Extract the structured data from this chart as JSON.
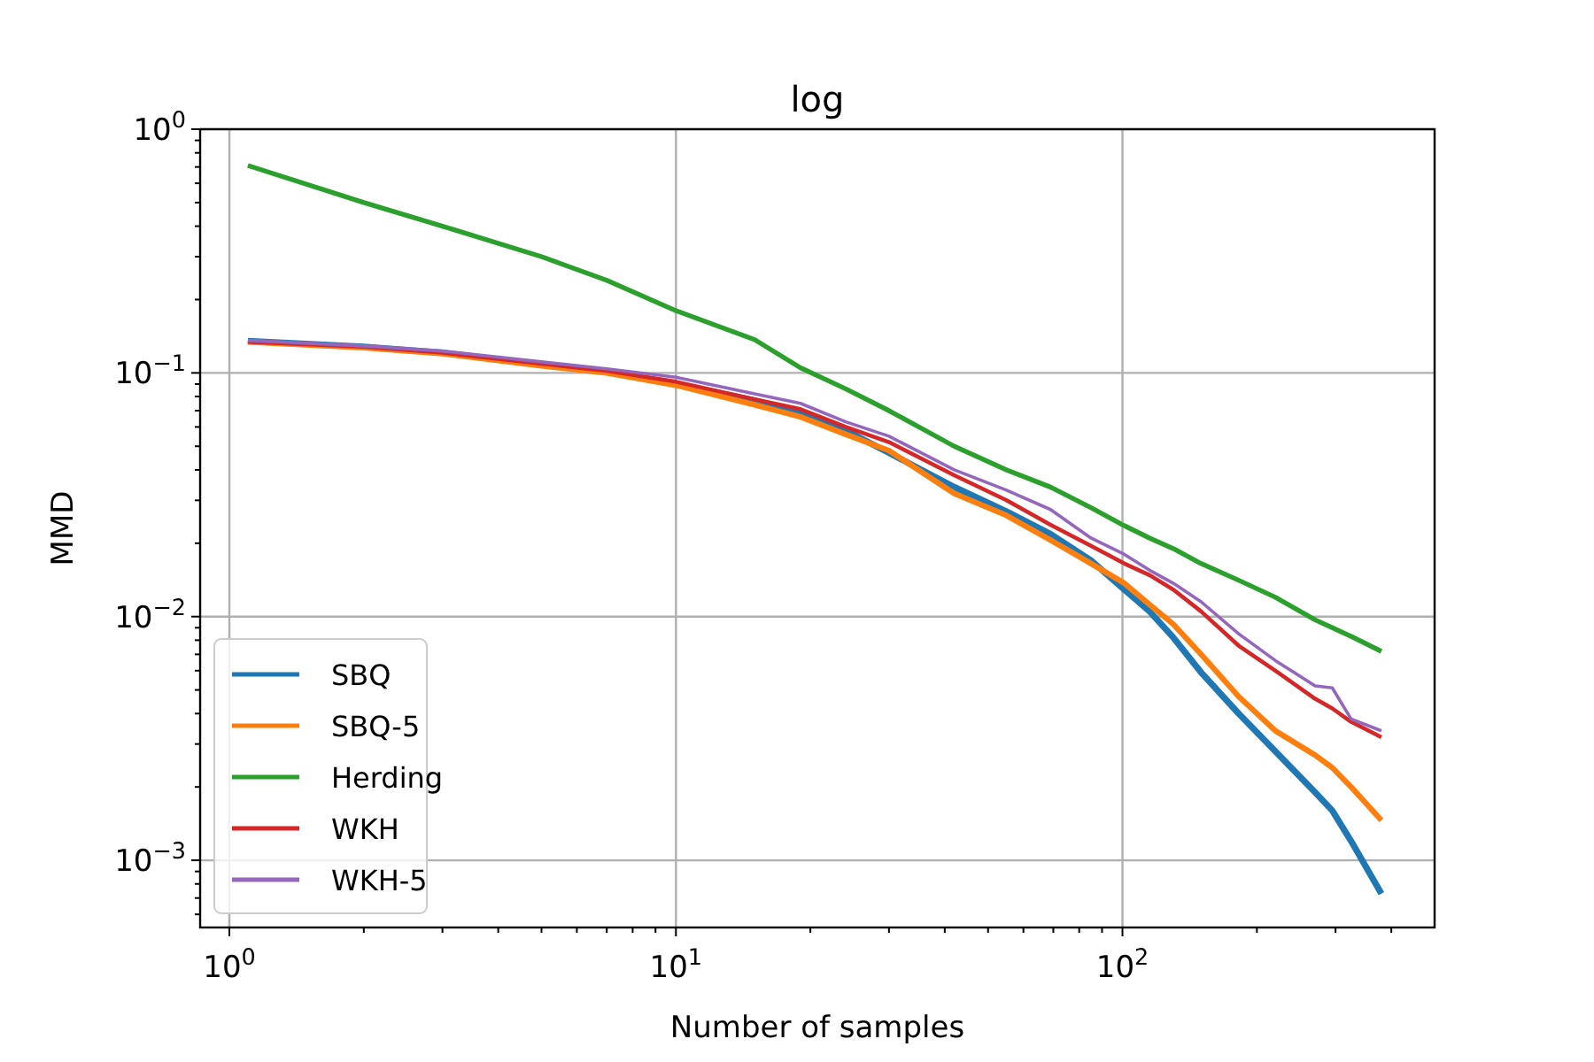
{
  "chart_data": {
    "type": "line",
    "title": "log",
    "xlabel": "Number of samples",
    "ylabel": "MMD",
    "log": "xy",
    "grid": true,
    "legend": "bottom left",
    "line_style": "solid",
    "marker": "none",
    "x": [
      1.1,
      2,
      3,
      5,
      7,
      10,
      15,
      19,
      24,
      30,
      42,
      55,
      69,
      85,
      101,
      115,
      130,
      150,
      182,
      220,
      270,
      295,
      325,
      380
    ],
    "xlim": [
      0.86,
      500
    ],
    "ylim": [
      0.00053,
      1
    ],
    "xticks": [
      {
        "value": 1,
        "label": "10$^{0}$"
      },
      {
        "value": 2,
        "label": null
      },
      {
        "value": 3,
        "label": null
      },
      {
        "value": 4,
        "label": null
      },
      {
        "value": 5,
        "label": null
      },
      {
        "value": 6,
        "label": null
      },
      {
        "value": 7,
        "label": null
      },
      {
        "value": 8,
        "label": null
      },
      {
        "value": 9,
        "label": null
      },
      {
        "value": 10,
        "label": "10$^{1}$"
      },
      {
        "value": 20,
        "label": null
      },
      {
        "value": 30,
        "label": null
      },
      {
        "value": 40,
        "label": null
      },
      {
        "value": 50,
        "label": null
      },
      {
        "value": 60,
        "label": null
      },
      {
        "value": 70,
        "label": null
      },
      {
        "value": 80,
        "label": null
      },
      {
        "value": 90,
        "label": null
      },
      {
        "value": 100,
        "label": "10$^{2}$"
      },
      {
        "value": 200,
        "label": null
      },
      {
        "value": 300,
        "label": null
      },
      {
        "value": 400,
        "label": null
      }
    ],
    "yticks": [
      {
        "value": 0.0006,
        "label": null
      },
      {
        "value": 0.0007,
        "label": null
      },
      {
        "value": 0.0008,
        "label": null
      },
      {
        "value": 0.0009,
        "label": null
      },
      {
        "value": 0.001,
        "label": "10$^{−3}$"
      },
      {
        "value": 0.002,
        "label": null
      },
      {
        "value": 0.003,
        "label": null
      },
      {
        "value": 0.004,
        "label": null
      },
      {
        "value": 0.005,
        "label": null
      },
      {
        "value": 0.006,
        "label": null
      },
      {
        "value": 0.007,
        "label": null
      },
      {
        "value": 0.008,
        "label": null
      },
      {
        "value": 0.009,
        "label": null
      },
      {
        "value": 0.01,
        "label": "10$^{−2}$"
      },
      {
        "value": 0.02,
        "label": null
      },
      {
        "value": 0.03,
        "label": null
      },
      {
        "value": 0.04,
        "label": null
      },
      {
        "value": 0.05,
        "label": null
      },
      {
        "value": 0.06,
        "label": null
      },
      {
        "value": 0.07,
        "label": null
      },
      {
        "value": 0.08,
        "label": null
      },
      {
        "value": 0.09,
        "label": null
      },
      {
        "value": 0.1,
        "label": "10$^{−1}$"
      },
      {
        "value": 0.2,
        "label": null
      },
      {
        "value": 0.3,
        "label": null
      },
      {
        "value": 0.4,
        "label": null
      },
      {
        "value": 0.5,
        "label": null
      },
      {
        "value": 0.6,
        "label": null
      },
      {
        "value": 0.7,
        "label": null
      },
      {
        "value": 0.8,
        "label": null
      },
      {
        "value": 0.9,
        "label": null
      },
      {
        "value": 1,
        "label": "10$^{0}$"
      }
    ],
    "series": [
      {
        "name": "SBQ",
        "color": "#1f77b4",
        "values": [
          0.135,
          0.128,
          0.121,
          0.108,
          0.101,
          0.09,
          0.077,
          0.069,
          0.058,
          0.047,
          0.034,
          0.027,
          0.0218,
          0.017,
          0.0129,
          0.0105,
          0.0082,
          0.0059,
          0.004,
          0.0028,
          0.0019,
          0.0016,
          0.0012,
          0.00073
        ]
      },
      {
        "name": "SBQ-5",
        "color": "#ff7f0e",
        "values": [
          0.134,
          0.127,
          0.12,
          0.107,
          0.1,
          0.089,
          0.074,
          0.066,
          0.056,
          0.048,
          0.032,
          0.026,
          0.0206,
          0.0165,
          0.0137,
          0.0112,
          0.0093,
          0.007,
          0.0047,
          0.0034,
          0.0027,
          0.0024,
          0.002,
          0.00146
        ]
      },
      {
        "name": "Herding",
        "color": "#2ca02c",
        "values": [
          0.71,
          0.5,
          0.4,
          0.3,
          0.24,
          0.18,
          0.137,
          0.105,
          0.086,
          0.07,
          0.05,
          0.04,
          0.034,
          0.028,
          0.0236,
          0.021,
          0.019,
          0.0165,
          0.0141,
          0.012,
          0.0097,
          0.009,
          0.0083,
          0.0072
        ]
      },
      {
        "name": "WKH",
        "color": "#d62728",
        "values": [
          0.134,
          0.128,
          0.121,
          0.109,
          0.102,
          0.092,
          0.078,
          0.071,
          0.06,
          0.052,
          0.038,
          0.03,
          0.0238,
          0.0195,
          0.0165,
          0.0148,
          0.0129,
          0.0105,
          0.0076,
          0.006,
          0.0046,
          0.0042,
          0.0037,
          0.0032
        ]
      },
      {
        "name": "WKH-5",
        "color": "#9467bd",
        "values": [
          0.136,
          0.129,
          0.123,
          0.111,
          0.104,
          0.096,
          0.082,
          0.075,
          0.063,
          0.055,
          0.04,
          0.033,
          0.0275,
          0.021,
          0.018,
          0.0155,
          0.0137,
          0.0115,
          0.0085,
          0.0066,
          0.0052,
          0.0051,
          0.0038,
          0.0034
        ]
      }
    ]
  }
}
